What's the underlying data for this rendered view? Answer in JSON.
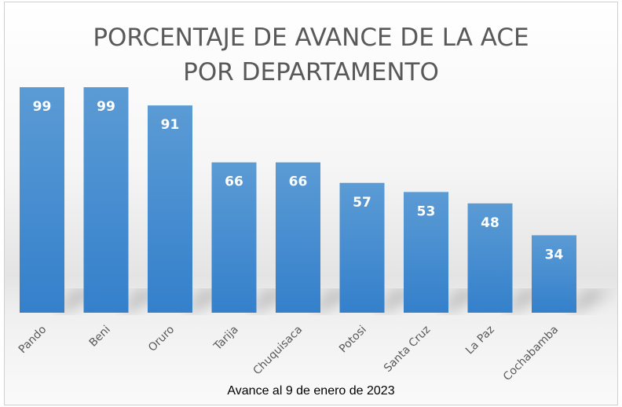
{
  "chart_data": {
    "type": "bar",
    "title_lines": [
      "PORCENTAJE DE AVANCE DE LA ACE",
      "POR DEPARTAMENTO"
    ],
    "subtitle": "Avance al 9 de enero de 2023",
    "categories": [
      "Pando",
      "Beni",
      "Oruro",
      "Tarija",
      "Chuquisaca",
      "Potosi",
      "Santa Cruz",
      "La Paz",
      "Cochabamba"
    ],
    "values": [
      99,
      99,
      91,
      66,
      66,
      57,
      53,
      48,
      34
    ],
    "ylim": [
      0,
      100
    ],
    "grid": false,
    "legend": "none",
    "bar_color_top": "#5b9bd5",
    "bar_color_bottom": "#3480cb"
  }
}
